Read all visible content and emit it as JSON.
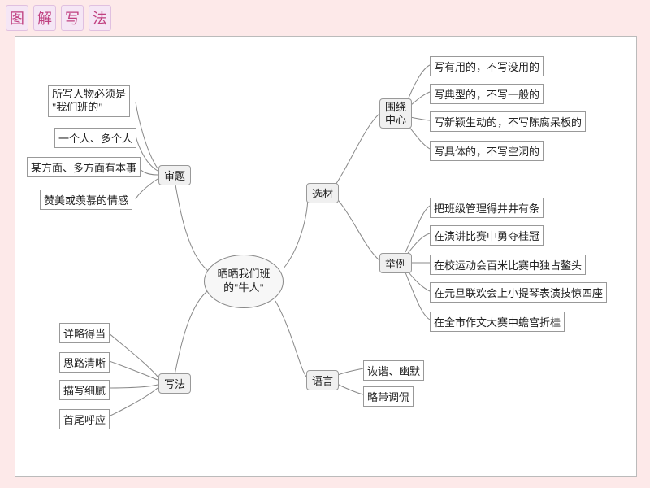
{
  "title_chars": [
    "图",
    "解",
    "写",
    "法"
  ],
  "center": "晒晒我们班\n的\"牛人\"",
  "hubs": {
    "shenti": "审题",
    "xiefa": "写法",
    "xuancai": "选材",
    "yuyan": "语言",
    "weirao": "围绕\n中心",
    "juli": "举例"
  },
  "shenti_items": [
    "所写人物必须是\n\"我们班的\"",
    "一个人、多个人",
    "某方面、多方面有本事",
    "赞美或羡慕的情感"
  ],
  "xiefa_items": [
    "详略得当",
    "思路清晰",
    "描写细腻",
    "首尾呼应"
  ],
  "yuyan_items": [
    "诙谐、幽默",
    "略带调侃"
  ],
  "weirao_items": [
    "写有用的，不写没用的",
    "写典型的，不写一般的",
    "写新颖生动的，不写陈腐呆板的",
    "写具体的，不写空洞的"
  ],
  "juli_items": [
    "把班级管理得井井有条",
    "在演讲比赛中勇夺桂冠",
    "在校运动会百米比赛中独占鳌头",
    "在元旦联欢会上小提琴表演技惊四座",
    "在全市作文大赛中蟾宫折桂"
  ],
  "style": {
    "bg": "#fde9e9",
    "board_bg": "#ffffff",
    "stroke": "#888888"
  }
}
